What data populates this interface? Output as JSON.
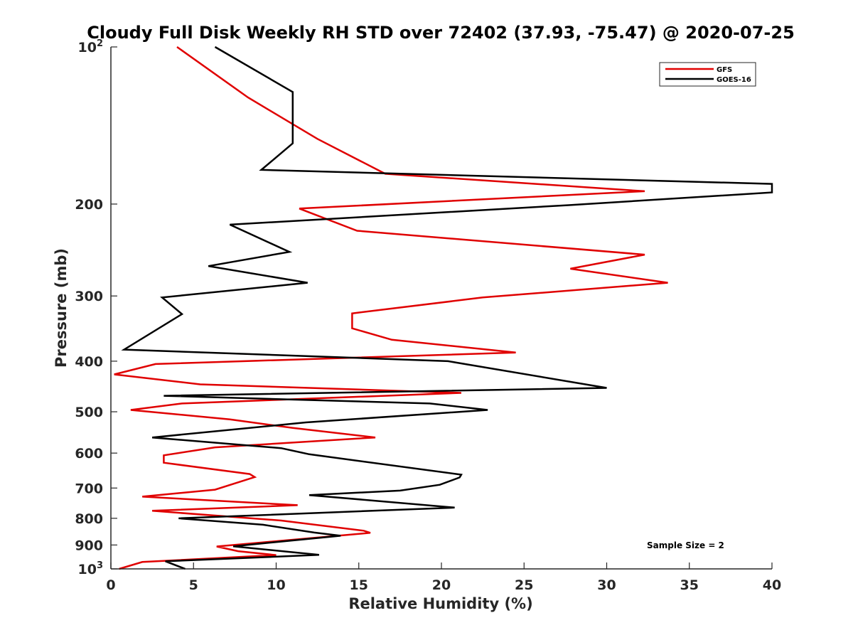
{
  "chart_data": {
    "type": "line",
    "title": "Cloudy Full Disk Weekly RH STD over 72402 (37.93, -75.47) @ 2020-07-25",
    "xlabel": "Relative Humidity (%)",
    "ylabel": "Pressure (mb)",
    "xlim": [
      0,
      40
    ],
    "ylim": [
      100,
      1000
    ],
    "y_scale": "log",
    "y_reversed": true,
    "grid": false,
    "legend_placement": "top-right",
    "x_ticks": [
      "0",
      "5",
      "10",
      "15",
      "20",
      "25",
      "30",
      "35",
      "40"
    ],
    "y_ticks": [
      {
        "value": 100,
        "base": "10",
        "exp": "2"
      },
      {
        "value": 200,
        "label": "200"
      },
      {
        "value": 300,
        "label": "300"
      },
      {
        "value": 400,
        "label": "400"
      },
      {
        "value": 500,
        "label": "500"
      },
      {
        "value": 600,
        "label": "600"
      },
      {
        "value": 700,
        "label": "700"
      },
      {
        "value": 800,
        "label": "800"
      },
      {
        "value": 900,
        "label": "900"
      },
      {
        "value": 1000,
        "base": "10",
        "exp": "3"
      }
    ],
    "annotation": "Sample Size = 2",
    "series": [
      {
        "name": "GFS",
        "color": "#e00000",
        "points": [
          [
            4.0,
            100
          ],
          [
            8.3,
            125
          ],
          [
            12.5,
            150
          ],
          [
            16.6,
            175
          ],
          [
            32.3,
            189
          ],
          [
            11.4,
            204
          ],
          [
            14.9,
            225
          ],
          [
            32.3,
            250
          ],
          [
            27.8,
            266
          ],
          [
            33.7,
            283
          ],
          [
            22.5,
            302
          ],
          [
            14.6,
            324
          ],
          [
            14.6,
            346
          ],
          [
            17.0,
            364
          ],
          [
            24.5,
            385
          ],
          [
            2.7,
            405
          ],
          [
            0.2,
            424
          ],
          [
            5.4,
            443
          ],
          [
            21.2,
            460
          ],
          [
            4.3,
            482
          ],
          [
            1.2,
            496
          ],
          [
            7.2,
            517
          ],
          [
            11.0,
            537
          ],
          [
            16.0,
            560
          ],
          [
            6.3,
            585
          ],
          [
            3.2,
            606
          ],
          [
            3.2,
            626
          ],
          [
            8.4,
            658
          ],
          [
            8.7,
            667
          ],
          [
            6.3,
            705
          ],
          [
            1.9,
            727
          ],
          [
            11.3,
            755
          ],
          [
            2.5,
            774
          ],
          [
            10.3,
            808
          ],
          [
            15.3,
            845
          ],
          [
            15.7,
            853
          ],
          [
            6.4,
            906
          ],
          [
            7.7,
            925
          ],
          [
            10.0,
            941
          ],
          [
            1.9,
            970
          ],
          [
            0.5,
            1000
          ]
        ]
      },
      {
        "name": "GOES-16",
        "color": "#000000",
        "points": [
          [
            6.3,
            100
          ],
          [
            11.0,
            122
          ],
          [
            11.0,
            133
          ],
          [
            11.0,
            153
          ],
          [
            9.1,
            172
          ],
          [
            40.0,
            183
          ],
          [
            40.0,
            190
          ],
          [
            27.7,
            201
          ],
          [
            7.2,
            219
          ],
          [
            10.8,
            247
          ],
          [
            5.9,
            263
          ],
          [
            11.9,
            283
          ],
          [
            3.1,
            302
          ],
          [
            4.3,
            325
          ],
          [
            0.8,
            380
          ],
          [
            20.4,
            400
          ],
          [
            30.0,
            450
          ],
          [
            3.2,
            466
          ],
          [
            19.3,
            482
          ],
          [
            22.8,
            496
          ],
          [
            11.8,
            524
          ],
          [
            2.5,
            560
          ],
          [
            10.3,
            587
          ],
          [
            12.0,
            603
          ],
          [
            21.2,
            660
          ],
          [
            21.1,
            668
          ],
          [
            19.9,
            690
          ],
          [
            17.5,
            708
          ],
          [
            12.0,
            722
          ],
          [
            20.8,
            763
          ],
          [
            4.1,
            800
          ],
          [
            9.2,
            823
          ],
          [
            12.3,
            852
          ],
          [
            13.9,
            864
          ],
          [
            7.4,
            905
          ],
          [
            12.6,
            940
          ],
          [
            3.3,
            967
          ],
          [
            4.5,
            1000
          ]
        ]
      }
    ]
  }
}
